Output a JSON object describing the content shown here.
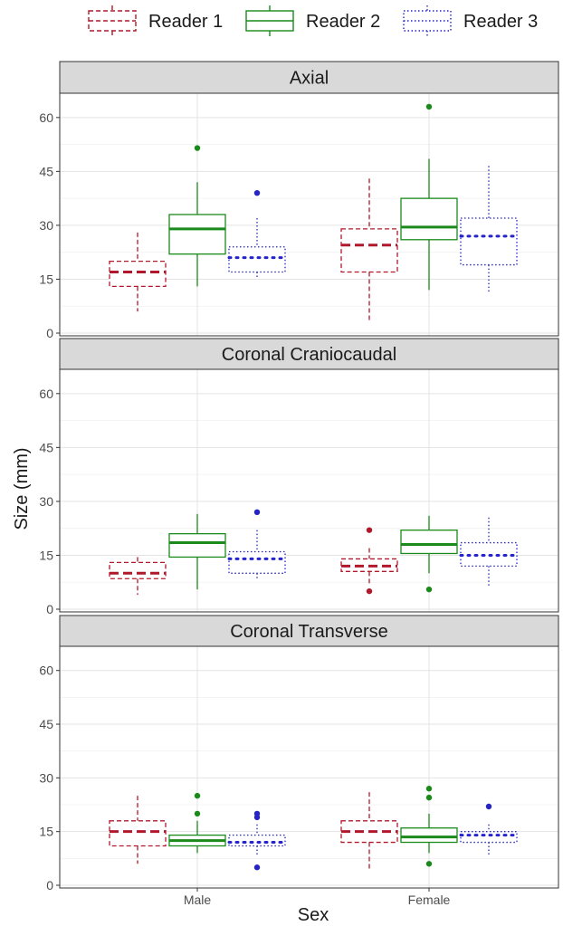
{
  "chart_data": {
    "type": "boxplot",
    "xlabel": "Sex",
    "ylabel": "Size (mm)",
    "categories": [
      "Male",
      "Female"
    ],
    "ylim": [
      0,
      66
    ],
    "yticks": [
      0,
      15,
      30,
      45,
      60
    ],
    "grid": true,
    "legend_position": "top",
    "series": [
      {
        "name": "Reader 1",
        "color": "#b2182b",
        "linestyle": "dashed"
      },
      {
        "name": "Reader 2",
        "color": "#1a8a1a",
        "linestyle": "solid"
      },
      {
        "name": "Reader 3",
        "color": "#2424c8",
        "linestyle": "dotted"
      }
    ],
    "panels": [
      {
        "title": "Axial",
        "boxes": [
          {
            "category": "Male",
            "series": "Reader 1",
            "min": 6,
            "q1": 13,
            "median": 17,
            "q3": 20,
            "max": 28,
            "outliers": []
          },
          {
            "category": "Male",
            "series": "Reader 2",
            "min": 13,
            "q1": 22,
            "median": 29,
            "q3": 33,
            "max": 42,
            "outliers": [
              51.5
            ]
          },
          {
            "category": "Male",
            "series": "Reader 3",
            "min": 15,
            "q1": 17,
            "median": 21,
            "q3": 24,
            "max": 32,
            "outliers": [
              39
            ]
          },
          {
            "category": "Female",
            "series": "Reader 1",
            "min": 3,
            "q1": 17,
            "median": 24.5,
            "q3": 29,
            "max": 43,
            "outliers": []
          },
          {
            "category": "Female",
            "series": "Reader 2",
            "min": 12,
            "q1": 26,
            "median": 29.5,
            "q3": 37.5,
            "max": 48.5,
            "outliers": [
              63
            ]
          },
          {
            "category": "Female",
            "series": "Reader 3",
            "min": 11,
            "q1": 19,
            "median": 27,
            "q3": 32,
            "max": 46.5,
            "outliers": []
          }
        ]
      },
      {
        "title": "Coronal Craniocaudal",
        "boxes": [
          {
            "category": "Male",
            "series": "Reader 1",
            "min": 4,
            "q1": 8.5,
            "median": 10,
            "q3": 13,
            "max": 14.5,
            "outliers": []
          },
          {
            "category": "Male",
            "series": "Reader 2",
            "min": 5.5,
            "q1": 14.5,
            "median": 18.5,
            "q3": 21,
            "max": 26.5,
            "outliers": []
          },
          {
            "category": "Male",
            "series": "Reader 3",
            "min": 8,
            "q1": 10,
            "median": 14,
            "q3": 16,
            "max": 22,
            "outliers": [
              27
            ]
          },
          {
            "category": "Female",
            "series": "Reader 1",
            "min": 7,
            "q1": 10.5,
            "median": 12,
            "q3": 14,
            "max": 17,
            "outliers": [
              22,
              5
            ]
          },
          {
            "category": "Female",
            "series": "Reader 2",
            "min": 10,
            "q1": 15.5,
            "median": 18,
            "q3": 22,
            "max": 26,
            "outliers": [
              5.5
            ]
          },
          {
            "category": "Female",
            "series": "Reader 3",
            "min": 6.5,
            "q1": 12,
            "median": 15,
            "q3": 18.5,
            "max": 25.5,
            "outliers": []
          }
        ]
      },
      {
        "title": "Coronal Transverse",
        "boxes": [
          {
            "category": "Male",
            "series": "Reader 1",
            "min": 6,
            "q1": 11,
            "median": 15,
            "q3": 18,
            "max": 25,
            "outliers": []
          },
          {
            "category": "Male",
            "series": "Reader 2",
            "min": 9,
            "q1": 11,
            "median": 12.5,
            "q3": 14,
            "max": 18,
            "outliers": [
              25,
              20
            ]
          },
          {
            "category": "Male",
            "series": "Reader 3",
            "min": 8,
            "q1": 11,
            "median": 12,
            "q3": 14,
            "max": 17,
            "outliers": [
              20,
              19,
              5
            ]
          },
          {
            "category": "Female",
            "series": "Reader 1",
            "min": 4,
            "q1": 12,
            "median": 15,
            "q3": 18,
            "max": 26,
            "outliers": []
          },
          {
            "category": "Female",
            "series": "Reader 2",
            "min": 9,
            "q1": 12,
            "median": 13.5,
            "q3": 16,
            "max": 20,
            "outliers": [
              27,
              24.5,
              6
            ]
          },
          {
            "category": "Female",
            "series": "Reader 3",
            "min": 8.5,
            "q1": 12,
            "median": 14,
            "q3": 15,
            "max": 17,
            "outliers": [
              22
            ]
          }
        ]
      }
    ]
  }
}
